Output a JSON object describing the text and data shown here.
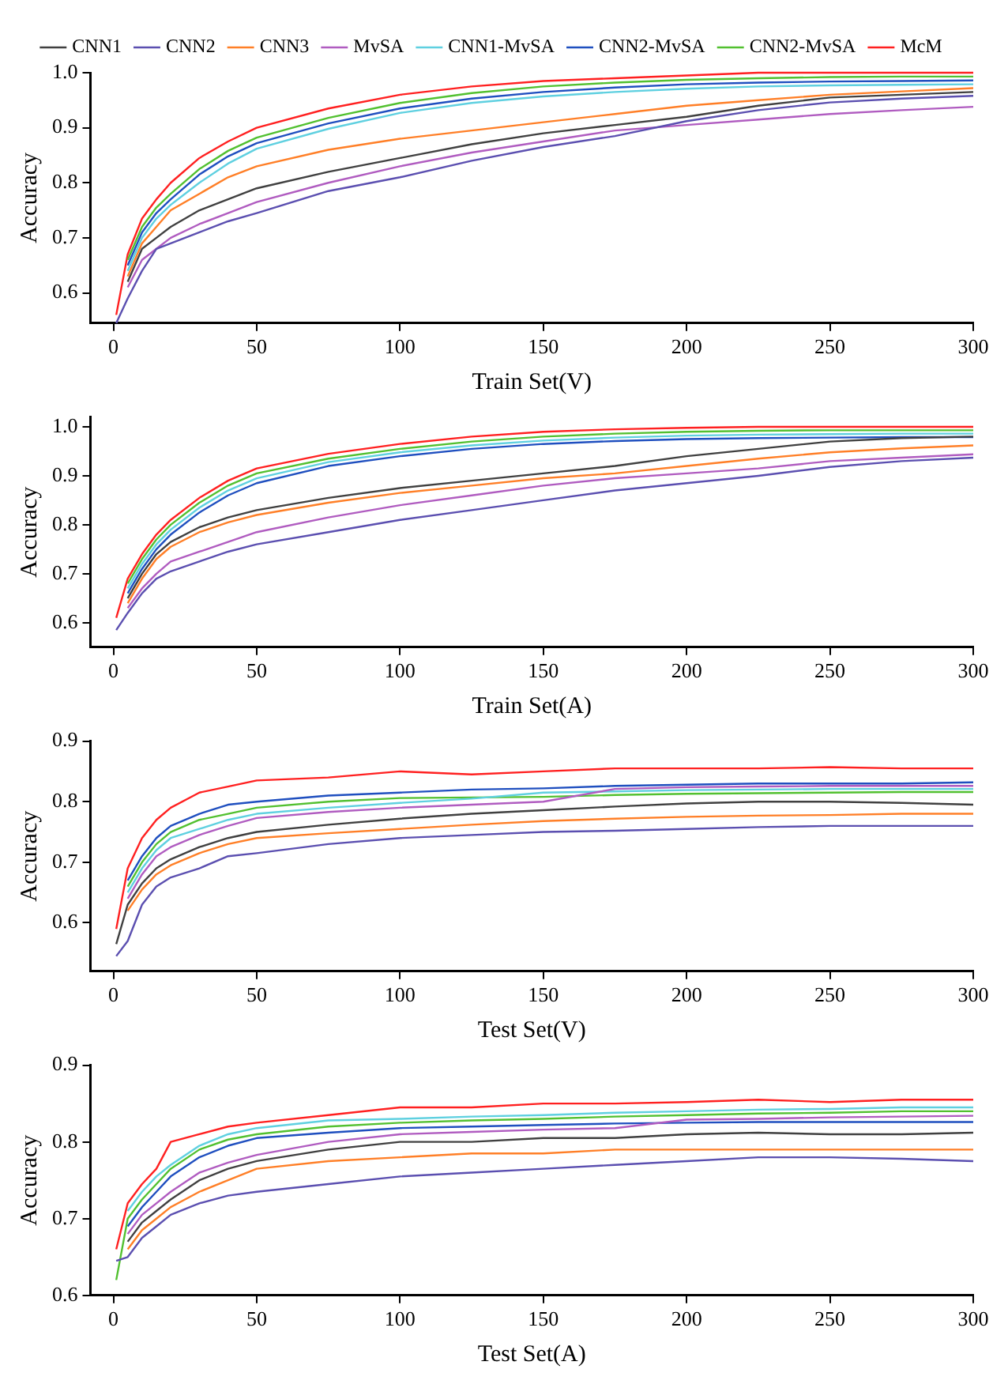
{
  "chart_data": [
    {
      "type": "line",
      "xlabel": "Train Set(V)",
      "ylabel": "Accuracy",
      "legend": "top",
      "marker": "none",
      "xlim": [
        -8,
        300
      ],
      "xticks": [
        0,
        50,
        100,
        150,
        200,
        250,
        300
      ],
      "ylim": [
        0.545,
        1.0
      ],
      "yticks": [
        0.6,
        0.7,
        0.8,
        0.9,
        {
          "value": 1,
          "label": "1.0"
        }
      ],
      "x": [
        1,
        5,
        10,
        15,
        20,
        30,
        40,
        50,
        75,
        100,
        125,
        150,
        175,
        200,
        225,
        250,
        275,
        300
      ],
      "series": [
        {
          "name": "CNN1",
          "color": "#404040",
          "values": [
            null,
            0.62,
            0.68,
            0.7,
            0.72,
            0.75,
            0.77,
            0.79,
            0.82,
            0.845,
            0.87,
            0.89,
            0.905,
            0.92,
            0.94,
            0.955,
            0.96,
            0.965
          ]
        },
        {
          "name": "CNN2",
          "color": "#5b4fb0",
          "values": [
            0.545,
            0.59,
            0.64,
            0.68,
            0.69,
            0.71,
            0.73,
            0.745,
            0.785,
            0.81,
            0.84,
            0.865,
            0.885,
            0.912,
            0.932,
            0.946,
            0.953,
            0.958
          ]
        },
        {
          "name": "CNN3",
          "color": "#ff7f27",
          "values": [
            null,
            0.63,
            0.69,
            0.72,
            0.75,
            0.78,
            0.81,
            0.83,
            0.86,
            0.88,
            0.895,
            0.91,
            0.925,
            0.94,
            0.95,
            0.96,
            0.966,
            0.972
          ]
        },
        {
          "name": "MvSA",
          "color": "#b05cc0",
          "values": [
            null,
            0.61,
            0.66,
            0.68,
            0.7,
            0.725,
            0.745,
            0.765,
            0.8,
            0.83,
            0.855,
            0.875,
            0.895,
            0.905,
            0.915,
            0.925,
            0.932,
            0.938
          ]
        },
        {
          "name": "CNN1-MvSA",
          "color": "#5fd0e0",
          "values": [
            null,
            0.64,
            0.7,
            0.735,
            0.76,
            0.8,
            0.835,
            0.862,
            0.898,
            0.927,
            0.945,
            0.957,
            0.965,
            0.971,
            0.975,
            0.977,
            0.978,
            0.979
          ]
        },
        {
          "name": "CNN2-MvSA",
          "color": "#1f4fbf",
          "values": [
            null,
            0.65,
            0.71,
            0.745,
            0.77,
            0.815,
            0.848,
            0.872,
            0.908,
            0.935,
            0.953,
            0.965,
            0.973,
            0.979,
            0.982,
            0.984,
            0.985,
            0.986
          ]
        },
        {
          "name": "CNN2-MvSA",
          "color": "#52c030",
          "values": [
            null,
            0.66,
            0.72,
            0.755,
            0.78,
            0.825,
            0.858,
            0.882,
            0.918,
            0.945,
            0.963,
            0.975,
            0.982,
            0.987,
            0.99,
            0.992,
            0.993,
            0.993
          ]
        },
        {
          "name": "McM",
          "color": "#ff2020",
          "values": [
            0.56,
            0.67,
            0.735,
            0.77,
            0.8,
            0.845,
            0.875,
            0.9,
            0.935,
            0.96,
            0.975,
            0.985,
            0.99,
            0.995,
            1.0,
            1.0,
            1.0,
            1.0
          ]
        }
      ]
    },
    {
      "type": "line",
      "xlabel": "Train Set(A)",
      "ylabel": "Accuracy",
      "marker": "none",
      "xlim": [
        -8,
        300
      ],
      "xticks": [
        0,
        50,
        100,
        150,
        200,
        250,
        300
      ],
      "ylim": [
        0.55,
        1.02
      ],
      "yticks": [
        0.6,
        0.7,
        0.8,
        0.9,
        {
          "value": 1,
          "label": "1.0"
        }
      ],
      "x": [
        1,
        5,
        10,
        15,
        20,
        30,
        40,
        50,
        75,
        100,
        125,
        150,
        175,
        200,
        225,
        250,
        275,
        300
      ],
      "series": [
        {
          "color": "#404040",
          "values": [
            null,
            0.65,
            0.7,
            0.74,
            0.765,
            0.795,
            0.815,
            0.83,
            0.855,
            0.875,
            0.89,
            0.905,
            0.92,
            0.94,
            0.955,
            0.97,
            0.977,
            0.98
          ]
        },
        {
          "color": "#5b4fb0",
          "values": [
            0.585,
            0.62,
            0.66,
            0.69,
            0.705,
            0.725,
            0.745,
            0.76,
            0.785,
            0.81,
            0.83,
            0.85,
            0.87,
            0.885,
            0.9,
            0.918,
            0.93,
            0.937
          ]
        },
        {
          "color": "#ff7f27",
          "values": [
            null,
            0.64,
            0.69,
            0.73,
            0.755,
            0.785,
            0.805,
            0.82,
            0.845,
            0.865,
            0.88,
            0.895,
            0.905,
            0.92,
            0.935,
            0.948,
            0.956,
            0.962
          ]
        },
        {
          "color": "#b05cc0",
          "values": [
            null,
            0.63,
            0.67,
            0.7,
            0.725,
            0.745,
            0.765,
            0.785,
            0.815,
            0.84,
            0.86,
            0.88,
            0.895,
            0.905,
            0.915,
            0.93,
            0.937,
            0.944
          ]
        },
        {
          "color": "#5fd0e0",
          "values": [
            null,
            0.67,
            0.72,
            0.76,
            0.79,
            0.835,
            0.87,
            0.895,
            0.928,
            0.948,
            0.962,
            0.972,
            0.978,
            0.982,
            0.984,
            0.985,
            0.986,
            0.986
          ]
        },
        {
          "color": "#1f4fbf",
          "values": [
            null,
            0.66,
            0.71,
            0.75,
            0.78,
            0.825,
            0.86,
            0.885,
            0.92,
            0.94,
            0.955,
            0.965,
            0.971,
            0.975,
            0.977,
            0.978,
            0.979,
            0.979
          ]
        },
        {
          "color": "#52c030",
          "values": [
            null,
            0.68,
            0.73,
            0.77,
            0.8,
            0.845,
            0.88,
            0.905,
            0.935,
            0.955,
            0.97,
            0.98,
            0.986,
            0.99,
            0.992,
            0.993,
            0.993,
            0.993
          ]
        },
        {
          "color": "#ff2020",
          "values": [
            0.61,
            0.69,
            0.74,
            0.78,
            0.81,
            0.855,
            0.89,
            0.915,
            0.945,
            0.965,
            0.98,
            0.99,
            0.995,
            0.998,
            1.0,
            1.0,
            1.0,
            1.0
          ]
        }
      ]
    },
    {
      "type": "line",
      "xlabel": "Test Set(V)",
      "ylabel": "Accuracy",
      "marker": "none",
      "xlim": [
        -8,
        300
      ],
      "xticks": [
        0,
        50,
        100,
        150,
        200,
        250,
        300
      ],
      "ylim": [
        0.52,
        0.9
      ],
      "yticks": [
        0.6,
        0.7,
        0.8,
        0.9
      ],
      "x": [
        1,
        5,
        10,
        15,
        20,
        30,
        40,
        50,
        75,
        100,
        125,
        150,
        175,
        200,
        225,
        250,
        275,
        300
      ],
      "series": [
        {
          "color": "#404040",
          "values": [
            0.565,
            0.63,
            0.665,
            0.69,
            0.705,
            0.725,
            0.74,
            0.75,
            0.762,
            0.772,
            0.78,
            0.786,
            0.792,
            0.797,
            0.8,
            0.8,
            0.798,
            0.795
          ]
        },
        {
          "color": "#5b4fb0",
          "values": [
            0.545,
            0.57,
            0.63,
            0.66,
            0.675,
            0.69,
            0.71,
            0.715,
            0.73,
            0.74,
            0.745,
            0.75,
            0.752,
            0.755,
            0.758,
            0.76,
            0.76,
            0.76
          ]
        },
        {
          "color": "#ff7f27",
          "values": [
            null,
            0.62,
            0.655,
            0.68,
            0.695,
            0.715,
            0.73,
            0.74,
            0.748,
            0.755,
            0.762,
            0.768,
            0.772,
            0.775,
            0.777,
            0.778,
            0.78,
            0.78
          ]
        },
        {
          "color": "#b05cc0",
          "values": [
            null,
            0.64,
            0.68,
            0.71,
            0.725,
            0.745,
            0.76,
            0.773,
            0.783,
            0.79,
            0.795,
            0.8,
            0.821,
            0.824,
            0.825,
            0.826,
            0.826,
            0.826
          ]
        },
        {
          "color": "#5fd0e0",
          "values": [
            null,
            0.65,
            0.69,
            0.72,
            0.74,
            0.755,
            0.77,
            0.78,
            0.79,
            0.798,
            0.805,
            0.815,
            0.817,
            0.819,
            0.82,
            0.821,
            0.821,
            0.821
          ]
        },
        {
          "color": "#1f4fbf",
          "values": [
            null,
            0.67,
            0.71,
            0.74,
            0.76,
            0.78,
            0.795,
            0.8,
            0.81,
            0.815,
            0.82,
            0.822,
            0.826,
            0.828,
            0.83,
            0.83,
            0.83,
            0.832
          ]
        },
        {
          "color": "#52c030",
          "values": [
            null,
            0.66,
            0.7,
            0.73,
            0.75,
            0.77,
            0.78,
            0.79,
            0.8,
            0.806,
            0.807,
            0.808,
            0.811,
            0.813,
            0.814,
            0.815,
            0.816,
            0.816
          ]
        },
        {
          "color": "#ff2020",
          "values": [
            0.59,
            0.69,
            0.74,
            0.77,
            0.79,
            0.815,
            0.825,
            0.835,
            0.84,
            0.85,
            0.845,
            0.85,
            0.855,
            0.855,
            0.855,
            0.857,
            0.855,
            0.855
          ]
        }
      ]
    },
    {
      "type": "line",
      "xlabel": "Test Set(A)",
      "ylabel": "Accuracy",
      "marker": "none",
      "xlim": [
        -8,
        300
      ],
      "xticks": [
        0,
        50,
        100,
        150,
        200,
        250,
        300
      ],
      "ylim": [
        0.6,
        0.9
      ],
      "yticks": [
        0.6,
        0.7,
        0.8,
        0.9
      ],
      "x": [
        1,
        5,
        10,
        15,
        20,
        30,
        40,
        50,
        75,
        100,
        125,
        150,
        175,
        200,
        225,
        250,
        275,
        300
      ],
      "series": [
        {
          "color": "#404040",
          "values": [
            null,
            0.67,
            0.695,
            0.71,
            0.725,
            0.75,
            0.765,
            0.775,
            0.79,
            0.8,
            0.8,
            0.805,
            0.805,
            0.81,
            0.812,
            0.81,
            0.81,
            0.812
          ]
        },
        {
          "color": "#5b4fb0",
          "values": [
            0.645,
            0.65,
            0.675,
            0.69,
            0.705,
            0.72,
            0.73,
            0.735,
            0.745,
            0.755,
            0.76,
            0.765,
            0.77,
            0.775,
            0.78,
            0.78,
            0.778,
            0.775
          ]
        },
        {
          "color": "#ff7f27",
          "values": [
            null,
            0.66,
            0.685,
            0.7,
            0.715,
            0.735,
            0.75,
            0.765,
            0.775,
            0.78,
            0.785,
            0.785,
            0.79,
            0.79,
            0.79,
            0.79,
            0.79,
            0.79
          ]
        },
        {
          "color": "#b05cc0",
          "values": [
            null,
            0.68,
            0.705,
            0.72,
            0.735,
            0.76,
            0.773,
            0.783,
            0.8,
            0.81,
            0.813,
            0.816,
            0.818,
            0.829,
            0.83,
            0.832,
            0.833,
            0.834
          ]
        },
        {
          "color": "#5fd0e0",
          "values": [
            null,
            0.71,
            0.735,
            0.755,
            0.77,
            0.795,
            0.81,
            0.818,
            0.828,
            0.83,
            0.833,
            0.835,
            0.838,
            0.84,
            0.842,
            0.843,
            0.845,
            0.845
          ]
        },
        {
          "color": "#1f4fbf",
          "values": [
            null,
            0.69,
            0.715,
            0.735,
            0.755,
            0.78,
            0.795,
            0.805,
            0.812,
            0.818,
            0.82,
            0.822,
            0.824,
            0.825,
            0.826,
            0.826,
            0.826,
            0.826
          ]
        },
        {
          "color": "#52c030",
          "values": [
            0.62,
            0.7,
            0.725,
            0.745,
            0.765,
            0.79,
            0.803,
            0.81,
            0.82,
            0.825,
            0.828,
            0.83,
            0.833,
            0.835,
            0.837,
            0.838,
            0.84,
            0.84
          ]
        },
        {
          "color": "#ff2020",
          "values": [
            0.66,
            0.72,
            0.745,
            0.765,
            0.8,
            0.81,
            0.82,
            0.825,
            0.835,
            0.845,
            0.845,
            0.85,
            0.85,
            0.852,
            0.855,
            0.852,
            0.855,
            0.855
          ]
        }
      ]
    }
  ]
}
